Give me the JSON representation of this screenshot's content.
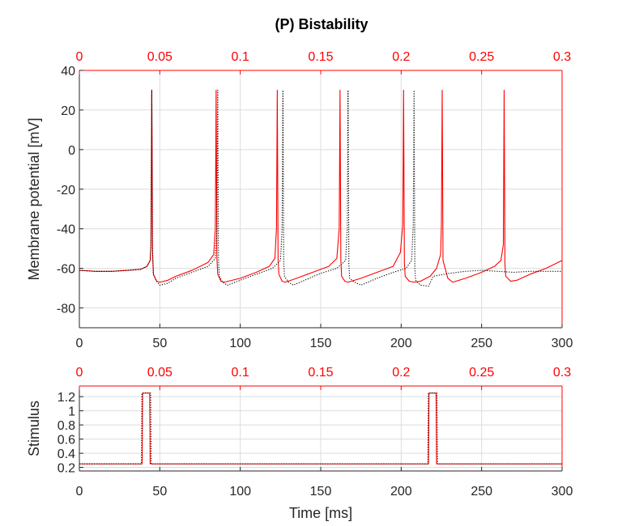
{
  "figure": {
    "title": "(P) Bistability"
  },
  "chart_data": [
    {
      "type": "line",
      "title": "(P) Bistability",
      "xlabel": "",
      "ylabel": "Membrane potential [mV]",
      "xlim": [
        0,
        300
      ],
      "ylim": [
        -90,
        40
      ],
      "xticks": [
        0,
        50,
        100,
        150,
        200,
        250,
        300
      ],
      "yticks": [
        40,
        20,
        0,
        -20,
        -40,
        -60,
        -80
      ],
      "top_xlim": [
        0,
        0.3
      ],
      "top_xticks": [
        "0",
        "0.05",
        "0.1",
        "0.15",
        "0.2",
        "0.25",
        "0.3"
      ],
      "grid": true,
      "colors": {
        "red": "#ff0000",
        "black": "#000000",
        "grid": "#dcdcdc",
        "axis": "#262626"
      },
      "series": [
        {
          "style": "solid",
          "color": "#ff0000",
          "x": [
            0,
            10,
            20,
            30,
            38,
            42,
            44,
            44.5,
            45,
            45.5,
            46,
            48,
            50,
            55,
            60,
            70,
            80,
            83.5,
            84.5,
            85,
            85.5,
            86,
            88,
            90,
            100,
            110,
            118,
            121.5,
            122.5,
            123,
            123.5,
            124,
            126,
            128,
            135,
            145,
            155,
            160,
            161.5,
            162,
            162.5,
            163,
            165,
            167,
            175,
            185,
            195,
            199.5,
            201,
            201.5,
            202,
            202.5,
            205,
            208,
            212,
            218,
            222,
            224.5,
            225,
            225.5,
            226,
            229,
            232,
            240,
            250,
            258,
            262,
            263.5,
            264,
            264.5,
            265,
            268,
            272,
            280,
            290,
            300
          ],
          "y": [
            -61,
            -61.5,
            -61.5,
            -61,
            -60.5,
            -59,
            -56,
            -48,
            30,
            -52,
            -63,
            -66.5,
            -67,
            -66,
            -64,
            -61,
            -57,
            -53,
            -40,
            30,
            -55,
            -63,
            -66.5,
            -67,
            -65,
            -62,
            -59,
            -55,
            -40,
            30,
            -55,
            -63,
            -66.5,
            -67,
            -65,
            -62,
            -59,
            -55,
            -40,
            30,
            -56,
            -64,
            -66.5,
            -67,
            -65,
            -62,
            -59,
            -52,
            -38,
            30,
            -57,
            -64,
            -66.5,
            -67,
            -66.5,
            -64,
            -60,
            -53,
            -38,
            30,
            -56,
            -65,
            -67,
            -65,
            -62,
            -59,
            -56,
            -48,
            30,
            -58,
            -64,
            -66.5,
            -66,
            -63,
            -60,
            -56
          ]
        },
        {
          "style": "dotted",
          "color": "#000000",
          "x": [
            0,
            10,
            20,
            30,
            38,
            42,
            44,
            44.5,
            45,
            45.5,
            46,
            48,
            50,
            55,
            60,
            70,
            80,
            84.5,
            85.5,
            86,
            86.5,
            87,
            89,
            92,
            100,
            110,
            120,
            125,
            126,
            126.5,
            127,
            127.5,
            130,
            133,
            140,
            150,
            160,
            165.5,
            166.5,
            167,
            167.5,
            168,
            171,
            175,
            185,
            195,
            203,
            206.5,
            207.5,
            208,
            208.5,
            209,
            212,
            217,
            220,
            230,
            240,
            250,
            260,
            270,
            280,
            290,
            300
          ],
          "y": [
            -61,
            -61.5,
            -61.5,
            -61,
            -60.5,
            -59,
            -56,
            -48,
            30,
            -52,
            -63,
            -66.5,
            -68.5,
            -67.5,
            -65,
            -62,
            -59,
            -55,
            -40,
            30,
            -56,
            -64,
            -67,
            -68.5,
            -66,
            -63,
            -60,
            -56,
            -40,
            30,
            -57,
            -64,
            -67,
            -68.5,
            -66,
            -62.5,
            -60,
            -56,
            -40,
            30,
            -58,
            -65,
            -67,
            -68.5,
            -65,
            -62,
            -60,
            -56,
            -38,
            30,
            -60,
            -66,
            -68.5,
            -69,
            -64,
            -62.5,
            -61.5,
            -61,
            -61.5,
            -62,
            -61.5,
            -61.5,
            -61.5
          ]
        }
      ]
    },
    {
      "type": "line",
      "title": "",
      "xlabel": "Time [ms]",
      "ylabel": "Stimulus",
      "xlim": [
        0,
        300
      ],
      "ylim": [
        0.15,
        1.35
      ],
      "xticks": [
        0,
        50,
        100,
        150,
        200,
        250,
        300
      ],
      "yticks": [
        1.2,
        1,
        0.8,
        0.6,
        0.4,
        0.2
      ],
      "top_xlim": [
        0,
        0.3
      ],
      "top_xticks": [
        "0",
        "0.05",
        "0.1",
        "0.15",
        "0.2",
        "0.25",
        "0.3"
      ],
      "grid": true,
      "series": [
        {
          "style": "solid",
          "color": "#ff0000",
          "x": [
            0,
            39,
            39.3,
            43.7,
            44,
            217,
            217.3,
            221.7,
            222,
            300
          ],
          "y": [
            0.25,
            0.25,
            1.25,
            1.25,
            0.25,
            0.25,
            1.25,
            1.25,
            0.25,
            0.25
          ]
        },
        {
          "style": "dotted",
          "color": "#000000",
          "x": [
            0,
            38.6,
            38.9,
            44.3,
            44.6,
            216.6,
            216.9,
            222.3,
            222.6,
            300
          ],
          "y": [
            0.25,
            0.25,
            1.25,
            1.25,
            0.25,
            0.25,
            1.25,
            1.25,
            0.25,
            0.25
          ]
        }
      ]
    }
  ]
}
